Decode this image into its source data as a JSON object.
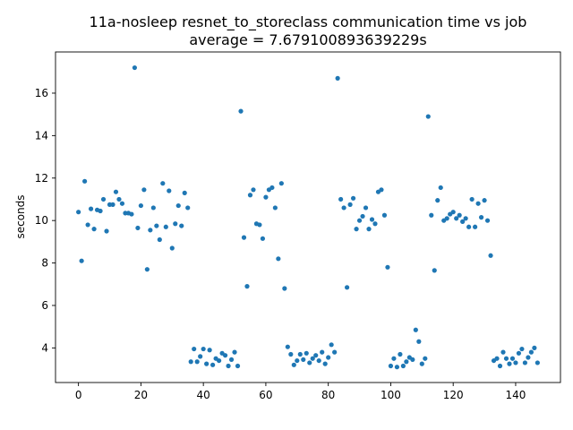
{
  "chart_data": {
    "type": "scatter",
    "title": "11a-nosleep resnet_to_storeclass communication time vs job",
    "subtitle": "average = 7.679100893639229s",
    "xlabel": "",
    "ylabel": "seconds",
    "xlim": [
      -7.35,
      154.35
    ],
    "ylim": [
      2.37,
      17.94
    ],
    "xticks": [
      0,
      20,
      40,
      60,
      80,
      100,
      120,
      140
    ],
    "yticks": [
      4,
      6,
      8,
      10,
      12,
      14,
      16
    ],
    "grid": false,
    "legend": "none",
    "marker_color": "#1f77b4",
    "series": [
      {
        "x": [
          0,
          1,
          2,
          3,
          4,
          5,
          6,
          7,
          8,
          9,
          10,
          11,
          12,
          13,
          14,
          15,
          16,
          17,
          18,
          19,
          20,
          21,
          22,
          23,
          24,
          25,
          26,
          27,
          28,
          29,
          30,
          31,
          32,
          33,
          34,
          35,
          36,
          37,
          38,
          39,
          40,
          41,
          42,
          43,
          44,
          45,
          46,
          47,
          48,
          49,
          50,
          51,
          52,
          53,
          54,
          55,
          56,
          57,
          58,
          59,
          60,
          61,
          62,
          63,
          64,
          65,
          66,
          67,
          68,
          69,
          70,
          71,
          72,
          73,
          74,
          75,
          76,
          77,
          78,
          79,
          80,
          81,
          82,
          83,
          84,
          85,
          86,
          87,
          88,
          89,
          90,
          91,
          92,
          93,
          94,
          95,
          96,
          97,
          98,
          99,
          100,
          101,
          102,
          103,
          104,
          105,
          106,
          107,
          108,
          109,
          110,
          111,
          112,
          113,
          114,
          115,
          116,
          117,
          118,
          119,
          120,
          121,
          122,
          123,
          124,
          125,
          126,
          127,
          128,
          129,
          130,
          131,
          132,
          133,
          134,
          135,
          136,
          137,
          138,
          139,
          140,
          141,
          142,
          143,
          144,
          145,
          146,
          147
        ],
        "y": [
          10.4,
          8.1,
          11.85,
          9.8,
          10.55,
          9.6,
          10.5,
          10.45,
          11.0,
          9.5,
          10.75,
          10.75,
          11.35,
          11.0,
          10.8,
          10.35,
          10.35,
          10.3,
          17.2,
          9.65,
          10.7,
          11.45,
          7.7,
          9.55,
          10.6,
          9.75,
          9.1,
          11.75,
          9.7,
          11.4,
          8.7,
          9.85,
          10.7,
          9.75,
          11.3,
          10.6,
          3.35,
          3.95,
          3.35,
          3.6,
          3.95,
          3.25,
          3.9,
          3.2,
          3.5,
          3.4,
          3.75,
          3.65,
          3.15,
          3.45,
          3.8,
          3.15,
          15.15,
          9.2,
          6.9,
          11.2,
          11.45,
          9.85,
          9.8,
          9.15,
          11.1,
          11.45,
          11.55,
          10.6,
          8.2,
          11.75,
          6.8,
          4.05,
          3.7,
          3.2,
          3.4,
          3.7,
          3.45,
          3.75,
          3.3,
          3.5,
          3.65,
          3.4,
          3.8,
          3.25,
          3.55,
          4.15,
          3.8,
          16.7,
          11.0,
          10.6,
          6.85,
          10.75,
          11.05,
          9.6,
          10.0,
          10.2,
          10.6,
          9.6,
          10.05,
          9.85,
          11.35,
          11.45,
          10.25,
          7.8,
          3.15,
          3.5,
          3.1,
          3.7,
          3.15,
          3.35,
          3.55,
          3.45,
          4.85,
          4.3,
          3.25,
          3.5,
          14.9,
          10.25,
          7.65,
          10.95,
          11.55,
          10.0,
          10.1,
          10.3,
          10.4,
          10.1,
          10.25,
          9.95,
          10.1,
          9.7,
          11.0,
          9.7,
          10.8,
          10.15,
          10.95,
          10.0,
          8.35,
          3.4,
          3.5,
          3.15,
          3.8,
          3.5,
          3.25,
          3.5,
          3.3,
          3.75,
          3.95,
          3.3,
          3.55,
          3.8,
          4.0,
          3.3
        ]
      }
    ]
  }
}
